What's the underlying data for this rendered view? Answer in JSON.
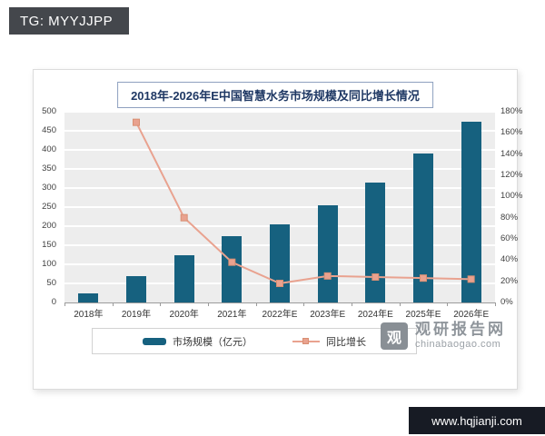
{
  "overlay": {
    "tg_label": "TG: MYYJJPP",
    "footer_url": "www.hqjianji.com"
  },
  "watermark": {
    "logo_glyph": "观",
    "name": "观研报告网",
    "domain": "chinabaogao.com"
  },
  "chart_data": {
    "type": "bar",
    "title": "2018年-2026年E中国智慧水务市场规模及同比增长情况",
    "categories": [
      "2018年",
      "2019年",
      "2020年",
      "2021年",
      "2022年E",
      "2023年E",
      "2024年E",
      "2025年E",
      "2026年E"
    ],
    "series": [
      {
        "name": "市场规模（亿元）",
        "type": "bar",
        "axis": "left",
        "color": "#16617f",
        "values": [
          25,
          70,
          125,
          173,
          205,
          255,
          315,
          390,
          475
        ]
      },
      {
        "name": "同比增长",
        "type": "line",
        "axis": "right",
        "color": "#e9a28f",
        "marker": "square",
        "unit": "%",
        "values": [
          null,
          170,
          80,
          38,
          18,
          25,
          24,
          23,
          22
        ]
      }
    ],
    "left_axis": {
      "min": 0,
      "max": 500,
      "step": 50,
      "labels": [
        "0",
        "50",
        "100",
        "150",
        "200",
        "250",
        "300",
        "350",
        "400",
        "450",
        "500"
      ]
    },
    "right_axis": {
      "min": 0,
      "max": 180,
      "step": 20,
      "unit": "%",
      "labels": [
        "0%",
        "20%",
        "40%",
        "60%",
        "80%",
        "100%",
        "120%",
        "140%",
        "160%",
        "180%"
      ]
    },
    "grid": true,
    "legend_position": "bottom"
  }
}
